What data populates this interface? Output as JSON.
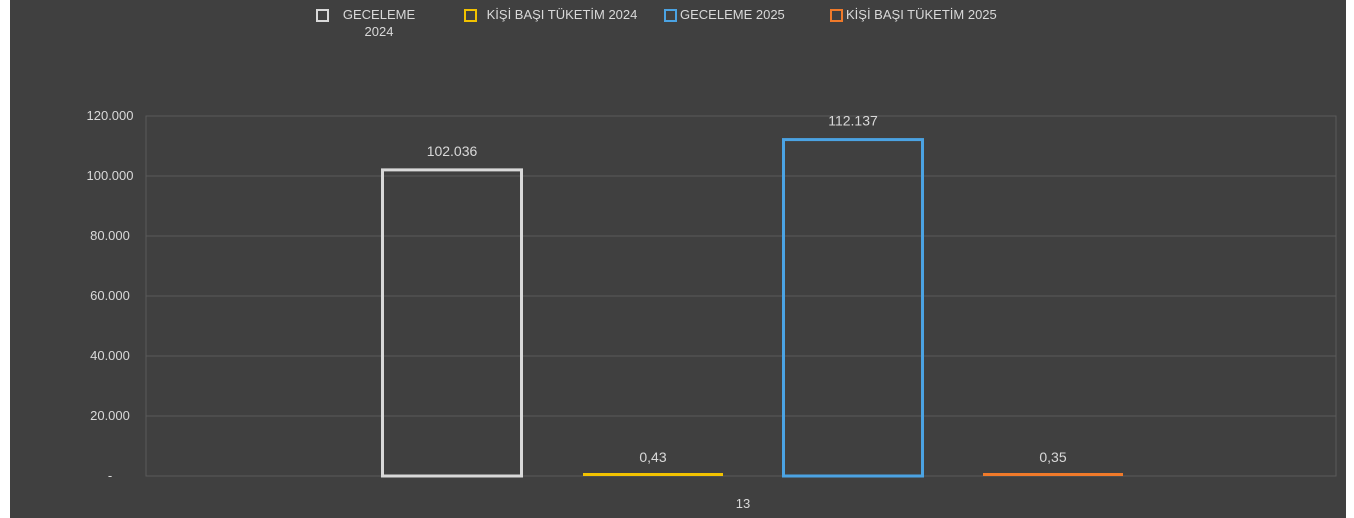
{
  "chart_data": {
    "type": "bar",
    "categories": [
      "13"
    ],
    "series": [
      {
        "name": "GECELEME 2024",
        "values": [
          102036
        ],
        "label": "102.036",
        "color": "#d9d9d9"
      },
      {
        "name": "KİŞİ BAŞI TÜKETİM 2024",
        "values": [
          0.43
        ],
        "label": "0,43",
        "color": "#f2c200"
      },
      {
        "name": "GECELEME 2025",
        "values": [
          112137
        ],
        "label": "112.137",
        "color": "#4ba3e3"
      },
      {
        "name": "KİŞİ BAŞI TÜKETİM 2025",
        "values": [
          0.35
        ],
        "label": "0,35",
        "color": "#f07a2a"
      }
    ],
    "ylim": [
      0,
      120000
    ],
    "yticks": [
      {
        "value": 0,
        "label": "-"
      },
      {
        "value": 20000,
        "label": "20.000"
      },
      {
        "value": 40000,
        "label": "40.000"
      },
      {
        "value": 60000,
        "label": "60.000"
      },
      {
        "value": 80000,
        "label": "80.000"
      },
      {
        "value": 100000,
        "label": "100.000"
      },
      {
        "value": 120000,
        "label": "120.000"
      }
    ],
    "grid": true,
    "legend": "top-center",
    "legend_entries": [
      "GECELEME 2024",
      "KİŞİ BAŞI TÜKETİM 2024",
      "GECELEME 2025",
      "KİŞİ BAŞI TÜKETİM 2025"
    ]
  },
  "colors": {
    "background": "#404040",
    "grid": "#5a5a5a",
    "text": "#d9d9d9"
  }
}
